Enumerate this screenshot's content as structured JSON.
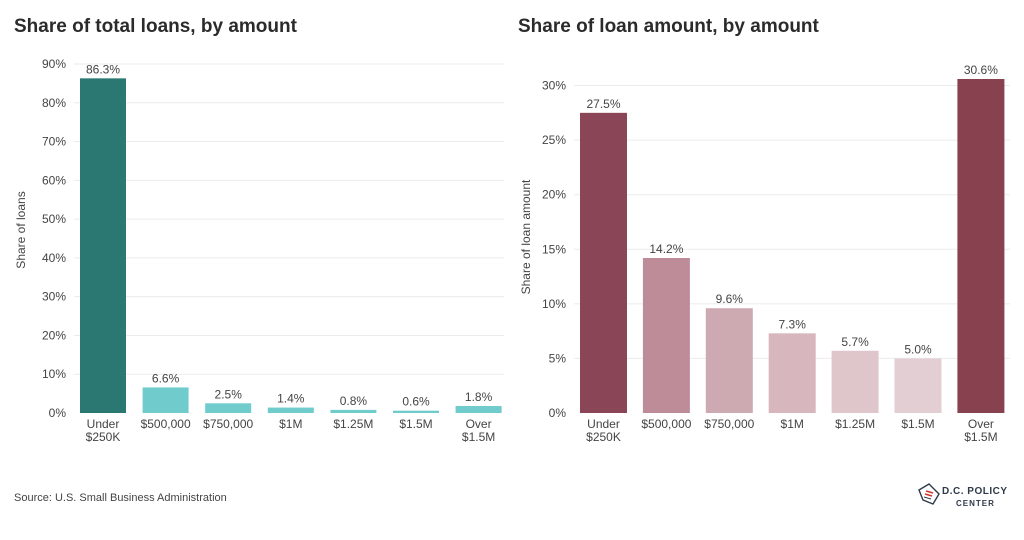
{
  "source": "Source: U.S. Small Business Administration",
  "logo": {
    "line1": "D.C. POLICY",
    "line2": "CENTER"
  },
  "colors": {
    "left_highlight": "#2a7871",
    "left_rest": "#70cccc",
    "right_highlight": "#8a4556",
    "right_shades": [
      "#8a4556",
      "#be8c98",
      "#cda9b1",
      "#d7b7bd",
      "#dfc6cb",
      "#e3cfd3",
      "#87414f"
    ]
  },
  "chart_data": [
    {
      "type": "bar",
      "title": "Share of total loans, by amount",
      "ylabel": "Share of loans",
      "xlabel": "",
      "categories": [
        "Under $250K",
        "$500,000",
        "$750,000",
        "$1M",
        "$1.25M",
        "$1.5M",
        "Over $1.5M"
      ],
      "category_lines": [
        [
          "Under",
          "$250K"
        ],
        [
          "$500,000"
        ],
        [
          "$750,000"
        ],
        [
          "$1M"
        ],
        [
          "$1.25M"
        ],
        [
          "$1.5M"
        ],
        [
          "Over",
          "$1.5M"
        ]
      ],
      "values": [
        86.3,
        6.6,
        2.5,
        1.4,
        0.8,
        0.6,
        1.8
      ],
      "value_labels": [
        "86.3%",
        "6.6%",
        "2.5%",
        "1.4%",
        "0.8%",
        "0.6%",
        "1.8%"
      ],
      "ylim": [
        0,
        90
      ],
      "yticks": [
        0,
        10,
        20,
        30,
        40,
        50,
        60,
        70,
        80,
        90
      ],
      "ytick_labels": [
        "0%",
        "10%",
        "20%",
        "30%",
        "40%",
        "50%",
        "60%",
        "70%",
        "80%",
        "90%"
      ],
      "grid": true
    },
    {
      "type": "bar",
      "title": "Share of loan amount, by amount",
      "ylabel": "Share of loan amount",
      "xlabel": "",
      "categories": [
        "Under $250K",
        "$500,000",
        "$750,000",
        "$1M",
        "$1.25M",
        "$1.5M",
        "Over $1.5M"
      ],
      "category_lines": [
        [
          "Under",
          "$250K"
        ],
        [
          "$500,000"
        ],
        [
          "$750,000"
        ],
        [
          "$1M"
        ],
        [
          "$1.25M"
        ],
        [
          "$1.5M"
        ],
        [
          "Over",
          "$1.5M"
        ]
      ],
      "values": [
        27.5,
        14.2,
        9.6,
        7.3,
        5.7,
        5.0,
        30.6
      ],
      "value_labels": [
        "27.5%",
        "14.2%",
        "9.6%",
        "7.3%",
        "5.7%",
        "5.0%",
        "30.6%"
      ],
      "ylim": [
        0,
        30.6
      ],
      "yticks": [
        0,
        5,
        10,
        15,
        20,
        25,
        30
      ],
      "ytick_labels": [
        "0%",
        "5%",
        "10%",
        "15%",
        "20%",
        "25%",
        "30%"
      ],
      "grid": true
    }
  ]
}
